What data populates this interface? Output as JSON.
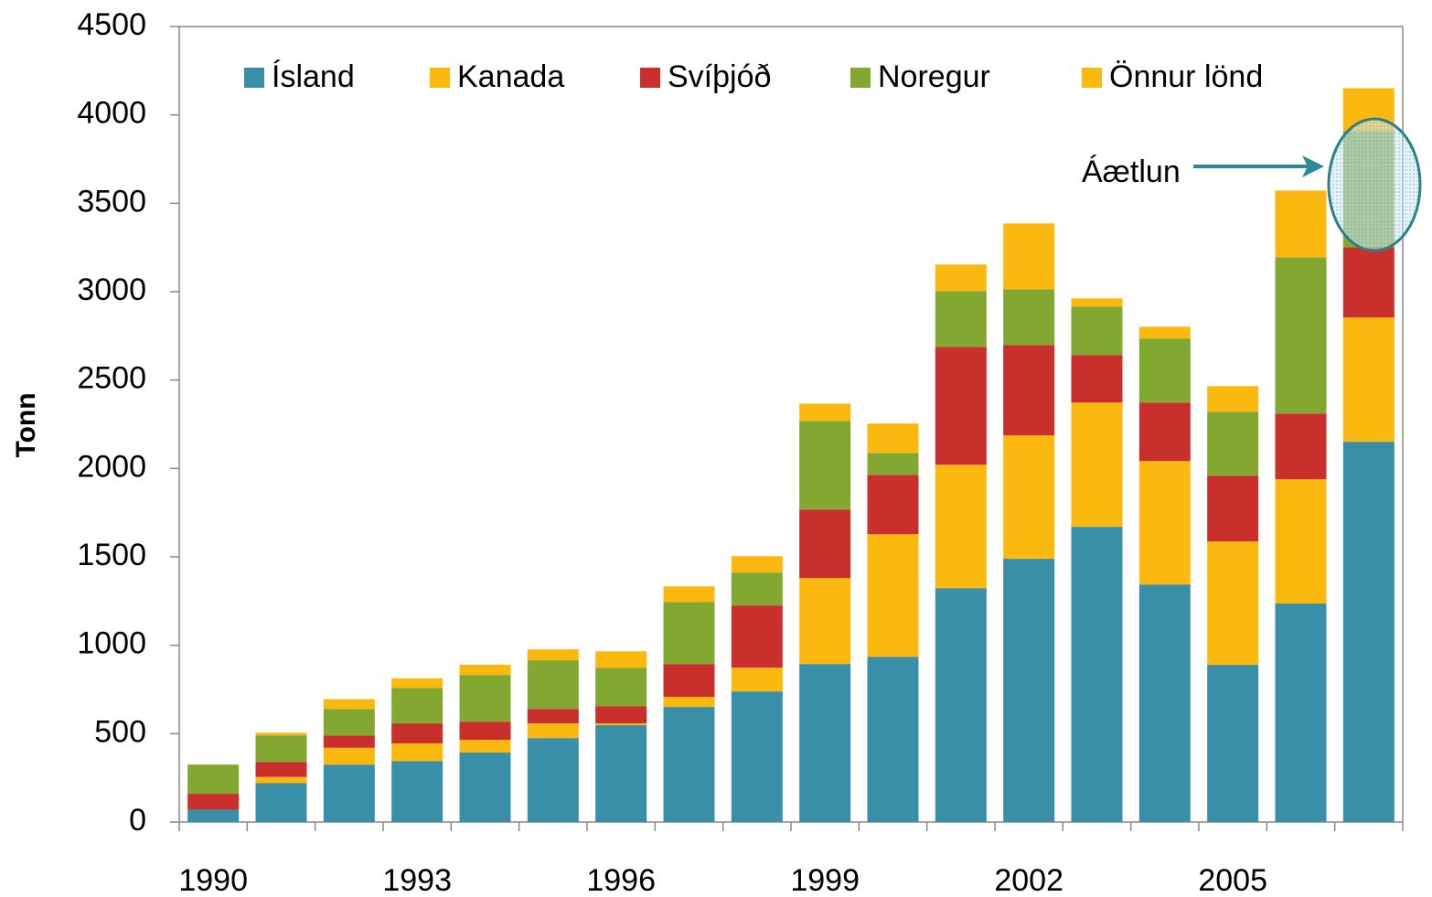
{
  "chart_data": {
    "type": "bar",
    "stacked": true,
    "y_label": "Tonn",
    "categories": [
      "1990",
      null,
      null,
      "1993",
      null,
      null,
      "1996",
      null,
      null,
      "1999",
      null,
      null,
      "2002",
      null,
      null,
      "2005",
      null,
      null
    ],
    "series": [
      {
        "name": "Ísland",
        "color": "#3a8fa8",
        "values": [
          70,
          220,
          325,
          345,
          393,
          475,
          548,
          651,
          739,
          894,
          935,
          1323,
          1489,
          1670,
          1344,
          889,
          1236,
          2151
        ]
      },
      {
        "name": "Kanada",
        "color": "#fbb80f",
        "values": [
          0,
          35,
          95,
          100,
          72,
          83,
          10,
          57,
          134,
          486,
          693,
          698,
          698,
          703,
          698,
          698,
          703,
          703
        ]
      },
      {
        "name": "Svíþjóð",
        "color": "#c9302c",
        "values": [
          90,
          85,
          70,
          113,
          103,
          82,
          98,
          186,
          352,
          388,
          336,
          667,
          512,
          269,
          331,
          372,
          372,
          398
        ]
      },
      {
        "name": "Noregur",
        "color": "#82a832",
        "values": [
          165,
          150,
          150,
          200,
          264,
          275,
          217,
          351,
          186,
          501,
          124,
          316,
          315,
          274,
          362,
          362,
          884,
          656
        ]
      },
      {
        "name": "Önnur lönd",
        "color": "#fbb80f",
        "values": [
          0,
          15,
          55,
          55,
          58,
          62,
          93,
          88,
          93,
          98,
          166,
          150,
          372,
          46,
          67,
          145,
          377,
          243
        ]
      }
    ],
    "annotation": "Áætlun",
    "ylim": [
      0,
      4500
    ],
    "yticks": [
      0,
      500,
      1000,
      1500,
      2000,
      2500,
      3000,
      3500,
      4000,
      4500
    ],
    "grid": false,
    "legend": "top"
  }
}
